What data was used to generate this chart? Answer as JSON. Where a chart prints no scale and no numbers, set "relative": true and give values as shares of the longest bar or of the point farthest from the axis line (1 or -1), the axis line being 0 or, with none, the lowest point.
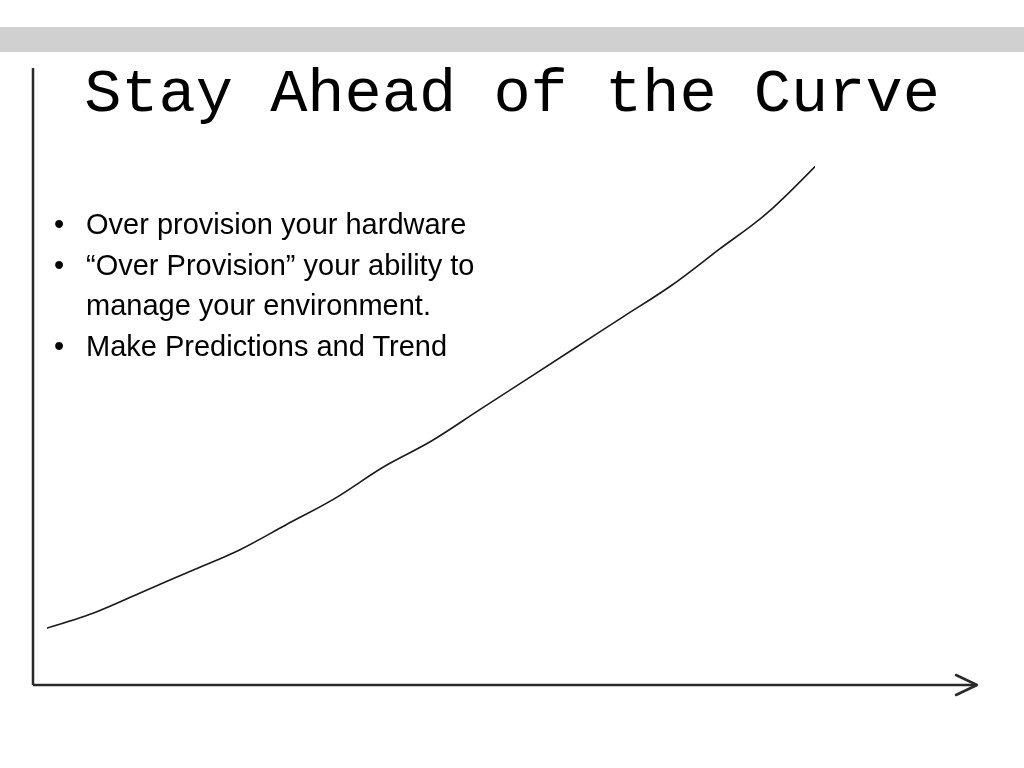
{
  "chart_data": {
    "type": "line",
    "title": "Stay Ahead of the Curve",
    "relative": true,
    "marker": "none",
    "categories": [
      null,
      null,
      null,
      null,
      null,
      null,
      null,
      null,
      null,
      null,
      null,
      null,
      null,
      null,
      null,
      null,
      null
    ],
    "series": [
      {
        "color": "#1a1a1a",
        "values": [
          0.11,
          0.14,
          0.18,
          0.22,
          0.26,
          0.31,
          0.36,
          0.42,
          0.47,
          0.53,
          0.59,
          0.65,
          0.71,
          0.77,
          0.84,
          0.91,
          1
        ]
      }
    ],
    "annotations": [
      "• Over provision your hardware",
      "• “Over Provision” your ability to manage your environment.",
      "• Make Predictions and Trend"
    ]
  }
}
